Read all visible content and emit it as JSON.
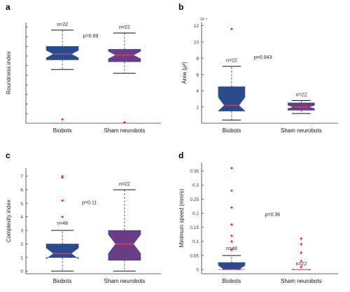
{
  "colors": {
    "biobots_fill": "#2b4c8c",
    "sham_fill": "#6b3d86",
    "median": "#e0406a",
    "whisker": "#2b3f7a",
    "outlier": "#ff0000",
    "axis": "#333333"
  },
  "chart_data": [
    {
      "type": "box",
      "panel_label": "a",
      "ylabel": "Roundness index",
      "categories": [
        "Biobots",
        "Sham neurobots"
      ],
      "yticks": [
        "",
        "",
        "",
        "",
        "",
        "",
        "",
        "",
        "",
        ""
      ],
      "ylim": [
        0,
        1.05
      ],
      "ytick_values": [
        0.1,
        0.2,
        0.3,
        0.4,
        0.5,
        0.6,
        0.7,
        0.8,
        0.9,
        1.0
      ],
      "boxes": [
        {
          "q1": 0.66,
          "median": 0.72,
          "q3": 0.8,
          "notch_low": 0.68,
          "notch_high": 0.76,
          "whisker_low": 0.56,
          "whisker_high": 0.97,
          "outliers": [
            0.04
          ],
          "n_label": "n=22"
        },
        {
          "q1": 0.64,
          "median": 0.71,
          "q3": 0.77,
          "notch_low": 0.67,
          "notch_high": 0.75,
          "whisker_low": 0.52,
          "whisker_high": 0.94,
          "outliers": [
            0.01
          ],
          "n_label": "n=22"
        }
      ],
      "p_label": "p=0.89"
    },
    {
      "type": "box",
      "panel_label": "b",
      "ylabel": "Area (μ²)",
      "exponent_label": "10⁻⁶",
      "categories": [
        "Biobots",
        "Sham neurobots"
      ],
      "yticks": [
        "2",
        "4",
        "6",
        "8",
        "10",
        "12"
      ],
      "ytick_values": [
        2,
        4,
        6,
        8,
        10,
        12
      ],
      "ylim": [
        0,
        12.4
      ],
      "boxes": [
        {
          "q1": 1.5,
          "median": 2.2,
          "q3": 4.5,
          "notch_low": 1.5,
          "notch_high": 3.2,
          "whisker_low": 0.4,
          "whisker_high": 7.0,
          "outliers": [
            11.6
          ],
          "n_label": "n=22"
        },
        {
          "q1": 1.6,
          "median": 2.0,
          "q3": 2.5,
          "notch_low": 1.8,
          "notch_high": 2.2,
          "whisker_low": 1.2,
          "whisker_high": 2.8,
          "outliers": [],
          "n_label": "n=22"
        }
      ],
      "p_label": "p=0.943"
    },
    {
      "type": "box",
      "panel_label": "c",
      "ylabel": "Complexity index",
      "categories": [
        "Biobots",
        "Sham neurobots"
      ],
      "yticks": [
        "0",
        "1",
        "2",
        "3",
        "4",
        "5",
        "6",
        "7"
      ],
      "ytick_values": [
        0,
        1,
        2,
        3,
        4,
        5,
        6,
        7
      ],
      "ylim": [
        -0.2,
        7.6
      ],
      "boxes": [
        {
          "q1": 1.0,
          "median": 1.3,
          "q3": 2.0,
          "notch_low": 0.9,
          "notch_high": 1.7,
          "whisker_low": 0.0,
          "whisker_high": 3.0,
          "outliers": [
            4.0,
            5.2,
            6.9,
            7.0
          ],
          "n_label": "n=48"
        },
        {
          "q1": 0.8,
          "median": 2.0,
          "q3": 3.0,
          "notch_low": 1.3,
          "notch_high": 2.7,
          "whisker_low": 0.0,
          "whisker_high": 6.0,
          "outliers": [],
          "n_label": "n=22"
        }
      ],
      "p_label": "p=0.11"
    },
    {
      "type": "box",
      "panel_label": "d",
      "ylabel": "Minimum speed (mm/s)",
      "categories": [
        "Biobots",
        "Sham neurobots"
      ],
      "yticks": [
        "0",
        "0.05",
        "0.1",
        "0.15",
        "0.2",
        "0.25",
        "0.3",
        "0.35"
      ],
      "ytick_values": [
        0,
        0.05,
        0.1,
        0.15,
        0.2,
        0.25,
        0.3,
        0.35
      ],
      "ylim": [
        -0.015,
        0.38
      ],
      "boxes": [
        {
          "q1": 0.0,
          "median": 0.0,
          "q3": 0.025,
          "notch_low": 0.0,
          "notch_high": 0.015,
          "whisker_low": 0.0,
          "whisker_high": 0.05,
          "outliers": [
            0.07,
            0.1,
            0.12,
            0.16,
            0.22,
            0.28,
            0.36
          ],
          "n_label": "n=48"
        },
        {
          "q1": 0.0,
          "median": 0.0,
          "q3": 0.0,
          "notch_low": 0.0,
          "notch_high": 0.0,
          "whisker_low": 0.0,
          "whisker_high": 0.0,
          "outliers": [
            0.01,
            0.03,
            0.06,
            0.09,
            0.11
          ],
          "n_label": "n=22"
        }
      ],
      "p_label": "p=0.36"
    }
  ]
}
